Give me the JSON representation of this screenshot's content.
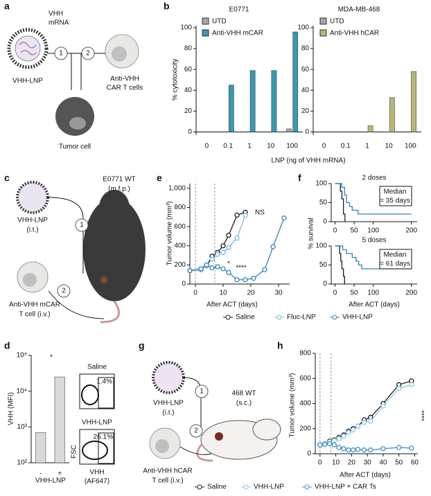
{
  "panel_letters": [
    "a",
    "b",
    "c",
    "d",
    "e",
    "f",
    "g",
    "h"
  ],
  "diagrams": {
    "a": {
      "mrna": [
        "VHH",
        "mRNA"
      ],
      "lnp": "VHH-LNP",
      "steps": [
        "1",
        "2"
      ],
      "car": [
        "Anti-VHH",
        "CAR T cells"
      ],
      "tumor": "Tumor cell"
    },
    "c": {
      "mouse": [
        "E0771 WT",
        "(m.f.p.)"
      ],
      "lnp": [
        "VHH-LNP",
        "(i.t.)"
      ],
      "car": [
        "Anti-VHH mCAR",
        "T cell (i.v.)"
      ],
      "steps": [
        "1",
        "2"
      ]
    },
    "d": {
      "flow": [
        "Saline",
        "1.4%",
        "VHH-LNP",
        "26.1%",
        "FSC",
        "VHH",
        "(AF647)"
      ]
    },
    "g": {
      "lnp": [
        "VHH-LNP",
        "(i.t.)"
      ],
      "mouse": [
        "468 WT",
        "(s.c.)"
      ],
      "car": [
        "Anti-VHH hCAR",
        "T cell (i.v.)"
      ],
      "steps": [
        "1",
        "2"
      ]
    }
  },
  "chart_data": [
    {
      "type": "bar",
      "title": "E0771",
      "ylabel": "% cytotoxicity",
      "xlabel": "LNP (ng of VHH mRNA)",
      "categories": [
        "0",
        "0.1",
        "1",
        "10",
        "100"
      ],
      "series": [
        {
          "name": "UTD",
          "color": "#a6a6a6",
          "values": [
            0,
            0,
            0,
            0,
            3
          ]
        },
        {
          "name": "Anti-VHH mCAR",
          "color": "#3a97b0",
          "values": [
            0,
            45,
            59,
            59,
            96
          ]
        }
      ],
      "ylim": [
        -3,
        102
      ],
      "yticks": [
        0,
        20,
        40,
        60,
        80,
        100
      ],
      "legend": "top-left"
    },
    {
      "type": "bar",
      "title": "MDA-MB-468",
      "categories": [
        "0",
        "0.1",
        "1",
        "10",
        "100"
      ],
      "series": [
        {
          "name": "UTD",
          "color": "#a6a6a6",
          "values": [
            0,
            0,
            0,
            0,
            0
          ]
        },
        {
          "name": "Anti-VHH hCAR",
          "color": "#b5b77a",
          "values": [
            0,
            0,
            6,
            33,
            58
          ]
        }
      ],
      "ylim": [
        -3,
        102
      ],
      "yticks": [
        0,
        20,
        40,
        60,
        80,
        100
      ],
      "legend": "top-left"
    },
    {
      "type": "line",
      "xlabel": "After ACT (days)",
      "ylabel": "Tumor volume (mm³)",
      "xlim": [
        -2,
        34
      ],
      "xticks": [
        0,
        10,
        20,
        30
      ],
      "ylim": [
        0,
        1050
      ],
      "yticks": [
        0,
        200,
        400,
        600,
        800,
        {
          "value": 1000,
          "label": "1,000"
        }
      ],
      "vlines": [
        0,
        7
      ],
      "annotations": [
        "NS",
        "*",
        "****"
      ],
      "legend": "bottom",
      "series": [
        {
          "name": "Saline",
          "color": "#1a1a1a",
          "x": [
            -2,
            2,
            4,
            6,
            8,
            10,
            12,
            15,
            18
          ],
          "values": [
            140,
            150,
            190,
            290,
            330,
            400,
            510,
            720,
            750
          ]
        },
        {
          "name": "Fluc-LNP",
          "color": "#7ab8de",
          "x": [
            -2,
            2,
            4,
            6,
            8,
            10,
            12,
            15,
            18
          ],
          "values": [
            140,
            150,
            190,
            260,
            310,
            330,
            380,
            480,
            720
          ]
        },
        {
          "name": "VHH-LNP",
          "color": "#2f82b8",
          "x": [
            -2,
            2,
            4,
            6,
            8,
            10,
            12,
            15,
            18,
            21,
            25,
            28,
            32
          ],
          "values": [
            140,
            160,
            200,
            170,
            180,
            160,
            120,
            45,
            45,
            60,
            150,
            390,
            690
          ]
        }
      ]
    },
    {
      "type": "line",
      "step": true,
      "title": "2 doses",
      "xlim": [
        -10,
        215
      ],
      "xticks": [
        0,
        50,
        100,
        200
      ],
      "ylim": [
        0,
        100
      ],
      "yticks": [
        0,
        50,
        100
      ],
      "annotations": [
        "Median",
        "= 35 days"
      ],
      "series": [
        {
          "color": "#1a1a1a",
          "x": [
            0,
            14,
            18,
            22,
            26
          ],
          "values": [
            100,
            80,
            60,
            20,
            0
          ]
        },
        {
          "color": "#2f82b8",
          "x": [
            0,
            18,
            25,
            30,
            38,
            45,
            60,
            200
          ],
          "values": [
            100,
            90,
            70,
            50,
            40,
            30,
            20,
            20
          ]
        }
      ]
    },
    {
      "type": "line",
      "step": true,
      "title": "5 doses",
      "xlabel": "After ACT (days)",
      "ylabel": "% survival",
      "xlim": [
        -10,
        215
      ],
      "xticks": [
        0,
        50,
        100,
        200
      ],
      "ylim": [
        0,
        100
      ],
      "yticks": [
        0,
        50,
        100
      ],
      "annotations": [
        "Median",
        "= 61 days"
      ],
      "series": [
        {
          "color": "#1a1a1a",
          "x": [
            0,
            12,
            15,
            18,
            22,
            25
          ],
          "values": [
            100,
            80,
            60,
            40,
            20,
            0
          ]
        },
        {
          "color": "#2f82b8",
          "x": [
            0,
            20,
            30,
            45,
            55,
            62,
            70,
            200
          ],
          "values": [
            100,
            90,
            80,
            70,
            60,
            50,
            40,
            40
          ]
        }
      ]
    },
    {
      "type": "bar",
      "log_scale": true,
      "xlabel": "VHH-LNP",
      "ylabel": "VHH (MFI)",
      "categories": [
        "-",
        "+"
      ],
      "values": [
        700,
        25000
      ],
      "color": "#d9d9d9",
      "ylim": [
        100,
        100000
      ],
      "yticks": [
        {
          "value": 100,
          "label": "10²"
        },
        {
          "value": 1000,
          "label": "10³"
        },
        {
          "value": 10000,
          "label": "10⁴"
        },
        {
          "value": 100000,
          "label": "10⁵"
        }
      ],
      "annotations": [
        "*"
      ]
    },
    {
      "type": "line",
      "xlabel": "After ACT (days)",
      "ylabel": "Tumor volume (mm³)",
      "xlim": [
        -3,
        62
      ],
      "xticks": [
        0,
        10,
        20,
        30,
        40,
        50,
        60
      ],
      "ylim": [
        0,
        800
      ],
      "yticks": [
        0,
        200,
        400,
        600,
        800
      ],
      "vlines": [
        0,
        7
      ],
      "annotations": [
        "****"
      ],
      "legend": "bottom",
      "series": [
        {
          "name": "Saline",
          "color": "#1a1a1a",
          "x": [
            0,
            3,
            6,
            9,
            12,
            15,
            18,
            21,
            24,
            28,
            32,
            40,
            50,
            58
          ],
          "values": [
            70,
            80,
            100,
            110,
            130,
            150,
            180,
            200,
            220,
            270,
            290,
            400,
            550,
            580
          ]
        },
        {
          "name": "VHH-LNP",
          "color": "#8cc6e6",
          "x": [
            0,
            3,
            6,
            9,
            12,
            15,
            18,
            21,
            24,
            28,
            32,
            40,
            50,
            58
          ],
          "values": [
            70,
            80,
            95,
            105,
            120,
            140,
            170,
            190,
            220,
            250,
            260,
            380,
            520,
            550
          ]
        },
        {
          "name": "VHH-LNP + CAR Ts",
          "color": "#3d8fc0",
          "x": [
            0,
            3,
            6,
            9,
            12,
            15,
            18,
            21,
            24,
            28,
            32,
            40,
            50,
            58
          ],
          "values": [
            70,
            75,
            80,
            70,
            50,
            40,
            30,
            30,
            35,
            30,
            30,
            40,
            50,
            45
          ]
        }
      ]
    }
  ]
}
